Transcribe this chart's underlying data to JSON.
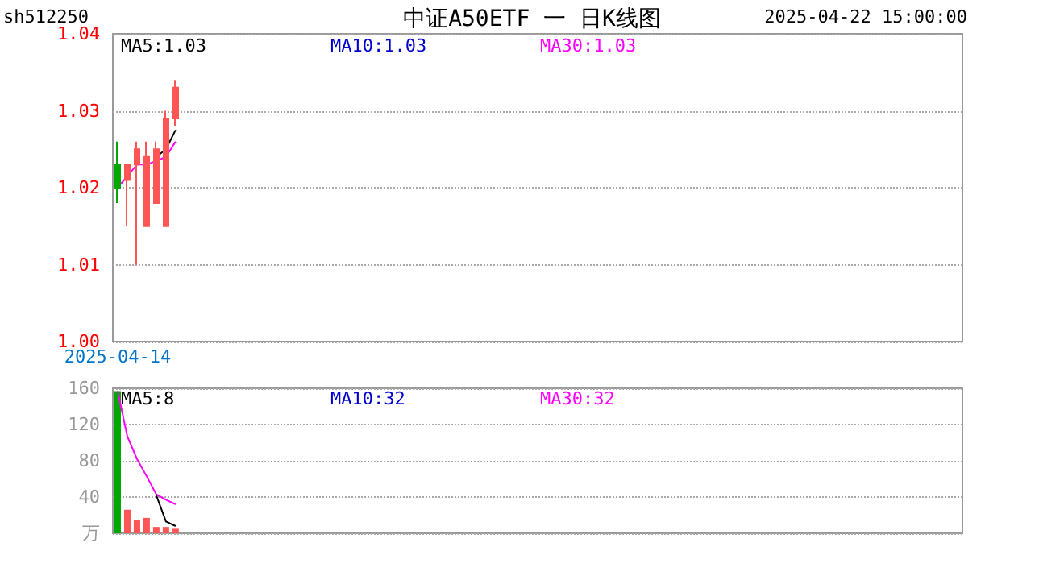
{
  "chart_data": [
    {
      "type": "candlestick",
      "title": "中证A50ETF 一 日K线图",
      "annotations": [
        "sh512250",
        "2025-04-22 15:00:00",
        "MA5:1.03",
        "MA10:1.03",
        "MA30:1.03"
      ],
      "categories": [
        "2025-04-14",
        null,
        null,
        null,
        null,
        null,
        null,
        null,
        null,
        null,
        null,
        null,
        null,
        null,
        null,
        null,
        null,
        null,
        null,
        null,
        null,
        null,
        null,
        null,
        null,
        null,
        null,
        null,
        null,
        null,
        null,
        null,
        null,
        null,
        null,
        null,
        null,
        null,
        null,
        null,
        null,
        null,
        null,
        null,
        null,
        null,
        null,
        null,
        null,
        null,
        null,
        null,
        null,
        null,
        null,
        null,
        null,
        null,
        null,
        null,
        null,
        null,
        null,
        null,
        null,
        null,
        null,
        null,
        null,
        null,
        null,
        null,
        null,
        null,
        null,
        null,
        null,
        null,
        null,
        null,
        null,
        null,
        null,
        null,
        null,
        null,
        null,
        null
      ],
      "ohlc": [
        [
          1.023,
          1.026,
          1.018,
          1.02
        ],
        [
          1.021,
          1.023,
          1.015,
          1.023
        ],
        [
          1.023,
          1.026,
          1.01,
          1.025
        ],
        [
          1.015,
          1.026,
          1.015,
          1.024
        ],
        [
          1.018,
          1.026,
          1.018,
          1.025
        ],
        [
          1.015,
          1.03,
          1.015,
          1.029
        ],
        [
          1.029,
          1.034,
          1.028,
          1.033
        ],
        null,
        null,
        null,
        null,
        null,
        null,
        null,
        null,
        null,
        null,
        null,
        null,
        null,
        null,
        null,
        null,
        null,
        null,
        null,
        null,
        null,
        null,
        null,
        null,
        null,
        null,
        null,
        null,
        null,
        null,
        null,
        null,
        null,
        null,
        null,
        null,
        null,
        null,
        null,
        null,
        null,
        null,
        null,
        null,
        null,
        null,
        null,
        null,
        null,
        null,
        null,
        null,
        null,
        null,
        null,
        null,
        null,
        null,
        null,
        null,
        null,
        null,
        null,
        null,
        null,
        null,
        null,
        null,
        null,
        null,
        null,
        null,
        null,
        null,
        null,
        null,
        null,
        null,
        null,
        null,
        null
      ],
      "colors": [
        "#00a800",
        "#ff5555",
        "#ff5555",
        "#ff5555",
        "#ff5555",
        "#ff5555",
        "#ff5555",
        null,
        null,
        null,
        null,
        null,
        null,
        null,
        null,
        null,
        null,
        null,
        null,
        null,
        null,
        null,
        null,
        null,
        null,
        null,
        null,
        null,
        null,
        null,
        null,
        null,
        null,
        null,
        null,
        null,
        null,
        null,
        null,
        null,
        null,
        null,
        null,
        null,
        null,
        null,
        null,
        null,
        null,
        null,
        null,
        null,
        null,
        null,
        null,
        null,
        null,
        null,
        null,
        null,
        null,
        null,
        null,
        null,
        null,
        null,
        null,
        null,
        null,
        null,
        null,
        null,
        null,
        null,
        null,
        null,
        null,
        null,
        null,
        null,
        null,
        null,
        null,
        null,
        null,
        null,
        null,
        null
      ],
      "series": [
        {
          "type": "line",
          "color": "#ff00ff",
          "values": [
            1.02,
            1.0215,
            1.023,
            1.023,
            1.0235,
            1.024,
            1.026,
            null,
            null,
            null,
            null,
            null,
            null,
            null,
            null,
            null,
            null,
            null,
            null,
            null,
            null,
            null,
            null,
            null,
            null,
            null,
            null,
            null,
            null,
            null,
            null,
            null,
            null,
            null,
            null,
            null,
            null,
            null,
            null,
            null,
            null,
            null,
            null,
            null,
            null,
            null,
            null,
            null,
            null,
            null,
            null,
            null,
            null,
            null,
            null,
            null,
            null,
            null,
            null,
            null,
            null,
            null,
            null,
            null,
            null,
            null,
            null,
            null,
            null,
            null,
            null,
            null,
            null,
            null,
            null,
            null,
            null,
            null,
            null,
            null,
            null,
            null,
            null,
            null,
            null,
            null,
            null,
            null
          ]
        },
        {
          "type": "line",
          "color": "#000000",
          "values": [
            null,
            null,
            null,
            null,
            1.024,
            1.025,
            1.0275,
            null,
            null,
            null,
            null,
            null,
            null,
            null,
            null,
            null,
            null,
            null,
            null,
            null,
            null,
            null,
            null,
            null,
            null,
            null,
            null,
            null,
            null,
            null,
            null,
            null,
            null,
            null,
            null,
            null,
            null,
            null,
            null,
            null,
            null,
            null,
            null,
            null,
            null,
            null,
            null,
            null,
            null,
            null,
            null,
            null,
            null,
            null,
            null,
            null,
            null,
            null,
            null,
            null,
            null,
            null,
            null,
            null,
            null,
            null,
            null,
            null,
            null,
            null,
            null,
            null,
            null,
            null,
            null,
            null,
            null,
            null,
            null,
            null,
            null,
            null,
            null,
            null,
            null,
            null,
            null,
            null
          ]
        }
      ],
      "ylim": [
        1.0,
        1.04
      ],
      "yticks": [
        {
          "value": 1.0,
          "label": "1.00"
        },
        {
          "value": 1.01,
          "label": "1.01"
        },
        {
          "value": 1.02,
          "label": "1.02"
        },
        {
          "value": 1.03,
          "label": "1.03"
        },
        {
          "value": 1.04,
          "label": "1.04"
        }
      ],
      "grid": "y",
      "marker": "none"
    },
    {
      "type": "bar",
      "annotations": [
        "MA5:8",
        "MA10:32",
        "MA30:32"
      ],
      "categories": [
        null,
        null,
        null,
        null,
        null,
        null,
        null,
        null,
        null,
        null,
        null,
        null,
        null,
        null,
        null,
        null,
        null,
        null,
        null,
        null,
        null,
        null,
        null,
        null,
        null,
        null,
        null,
        null,
        null,
        null,
        null,
        null,
        null,
        null,
        null,
        null,
        null,
        null,
        null,
        null,
        null,
        null,
        null,
        null,
        null,
        null,
        null,
        null,
        null,
        null,
        null,
        null,
        null,
        null,
        null,
        null,
        null,
        null,
        null,
        null,
        null,
        null,
        null,
        null,
        null,
        null,
        null,
        null,
        null,
        null,
        null,
        null,
        null,
        null,
        null,
        null,
        null,
        null,
        null,
        null,
        null,
        null,
        null,
        null,
        null,
        null,
        null,
        null
      ],
      "series": [
        {
          "type": "bar",
          "colors": [
            "#00a800",
            "#ff5555",
            "#ff5555",
            "#ff5555",
            "#ff5555",
            "#ff5555",
            "#ff5555",
            null,
            null,
            null,
            null,
            null,
            null,
            null,
            null,
            null,
            null,
            null,
            null,
            null,
            null,
            null,
            null,
            null,
            null,
            null,
            null,
            null,
            null,
            null,
            null,
            null,
            null,
            null,
            null,
            null,
            null,
            null,
            null,
            null,
            null,
            null,
            null,
            null,
            null,
            null,
            null,
            null,
            null,
            null,
            null,
            null,
            null,
            null,
            null,
            null,
            null,
            null,
            null,
            null,
            null,
            null,
            null,
            null,
            null,
            null,
            null,
            null,
            null,
            null,
            null,
            null,
            null,
            null,
            null,
            null,
            null,
            null,
            null,
            null,
            null,
            null,
            null,
            null,
            null,
            null,
            null,
            null
          ],
          "values": [
            157,
            26,
            15,
            17,
            7,
            7,
            5,
            null,
            null,
            null,
            null,
            null,
            null,
            null,
            null,
            null,
            null,
            null,
            null,
            null,
            null,
            null,
            null,
            null,
            null,
            null,
            null,
            null,
            null,
            null,
            null,
            null,
            null,
            null,
            null,
            null,
            null,
            null,
            null,
            null,
            null,
            null,
            null,
            null,
            null,
            null,
            null,
            null,
            null,
            null,
            null,
            null,
            null,
            null,
            null,
            null,
            null,
            null,
            null,
            null,
            null,
            null,
            null,
            null,
            null,
            null,
            null,
            null,
            null,
            null,
            null,
            null,
            null,
            null,
            null,
            null,
            null,
            null,
            null,
            null,
            null,
            null,
            null,
            null,
            null,
            null,
            null,
            null
          ]
        },
        {
          "type": "line",
          "color": "#ff00ff",
          "values": [
            157,
            107,
            82,
            63,
            43,
            37,
            32,
            null,
            null,
            null,
            null,
            null,
            null,
            null,
            null,
            null,
            null,
            null,
            null,
            null,
            null,
            null,
            null,
            null,
            null,
            null,
            null,
            null,
            null,
            null,
            null,
            null,
            null,
            null,
            null,
            null,
            null,
            null,
            null,
            null,
            null,
            null,
            null,
            null,
            null,
            null,
            null,
            null,
            null,
            null,
            null,
            null,
            null,
            null,
            null,
            null,
            null,
            null,
            null,
            null,
            null,
            null,
            null,
            null,
            null,
            null,
            null,
            null,
            null,
            null,
            null,
            null,
            null,
            null,
            null,
            null,
            null,
            null,
            null,
            null,
            null,
            null,
            null,
            null,
            null,
            null,
            null,
            null
          ]
        },
        {
          "type": "line",
          "color": "#000000",
          "values": [
            null,
            null,
            null,
            null,
            42,
            13,
            8,
            null,
            null,
            null,
            null,
            null,
            null,
            null,
            null,
            null,
            null,
            null,
            null,
            null,
            null,
            null,
            null,
            null,
            null,
            null,
            null,
            null,
            null,
            null,
            null,
            null,
            null,
            null,
            null,
            null,
            null,
            null,
            null,
            null,
            null,
            null,
            null,
            null,
            null,
            null,
            null,
            null,
            null,
            null,
            null,
            null,
            null,
            null,
            null,
            null,
            null,
            null,
            null,
            null,
            null,
            null,
            null,
            null,
            null,
            null,
            null,
            null,
            null,
            null,
            null,
            null,
            null,
            null,
            null,
            null,
            null,
            null,
            null,
            null,
            null,
            null,
            null,
            null,
            null,
            null,
            null,
            null
          ]
        }
      ],
      "ylim": [
        0,
        160
      ],
      "yticks": [
        {
          "value": 0,
          "label": "万"
        },
        40,
        80,
        120,
        160
      ],
      "grid": "y",
      "marker": "none",
      "tick_labels": "y"
    }
  ]
}
